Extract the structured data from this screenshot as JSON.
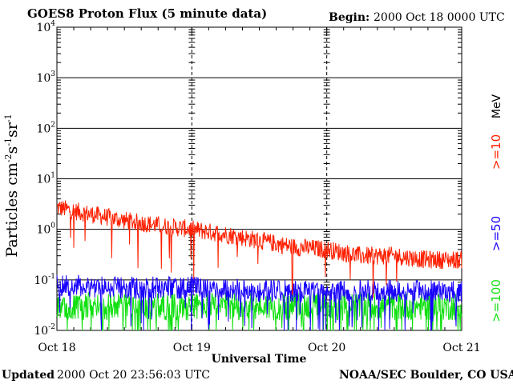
{
  "header": {
    "title": "GOES8 Proton Flux (5 minute data)",
    "begin_label": "Begin:",
    "begin_value": "2000 Oct 18 0000 UTC"
  },
  "footer": {
    "updated_label": "Updated",
    "updated_value": "2000 Oct 20 23:56:03 UTC",
    "credit": "NOAA/SEC Boulder, CO USA"
  },
  "chart_data": {
    "type": "line",
    "title": "GOES8 Proton Flux (5 minute data)",
    "xlabel": "Universal Time",
    "ylabel": "Particles cm-2s-1sr-1",
    "yscale": "log",
    "ylim": [
      0.01,
      10000
    ],
    "xlim": [
      "2000-10-18 00:00",
      "2000-10-21 00:00"
    ],
    "x_ticks": [
      "Oct 18",
      "Oct 19",
      "Oct 20",
      "Oct 21"
    ],
    "y_ticks": [
      {
        "base": "10",
        "exp": "4"
      },
      {
        "base": "10",
        "exp": "3"
      },
      {
        "base": "10",
        "exp": "2"
      },
      {
        "base": "10",
        "exp": "1"
      },
      {
        "base": "10",
        "exp": "0"
      },
      {
        "base": "10",
        "exp": "-1"
      },
      {
        "base": "10",
        "exp": "-2"
      }
    ],
    "legend_unit": "MeV",
    "grid": true,
    "series": [
      {
        "name": ">=10",
        "color": "#ff2000",
        "x": [
          "2000-10-18 00:00",
          "2000-10-18 06:00",
          "2000-10-18 12:00",
          "2000-10-18 18:00",
          "2000-10-19 00:00",
          "2000-10-19 06:00",
          "2000-10-19 12:00",
          "2000-10-19 18:00",
          "2000-10-20 00:00",
          "2000-10-20 06:00",
          "2000-10-20 12:00",
          "2000-10-20 18:00",
          "2000-10-21 00:00"
        ],
        "values": [
          2.7,
          2.0,
          1.5,
          1.2,
          1.0,
          0.8,
          0.6,
          0.45,
          0.4,
          0.3,
          0.3,
          0.25,
          0.25
        ]
      },
      {
        "name": ">=50",
        "color": "#1800ff",
        "x": [
          "2000-10-18 00:00",
          "2000-10-18 12:00",
          "2000-10-19 00:00",
          "2000-10-19 12:00",
          "2000-10-20 00:00",
          "2000-10-20 12:00",
          "2000-10-21 00:00"
        ],
        "values": [
          0.08,
          0.07,
          0.07,
          0.06,
          0.06,
          0.06,
          0.06
        ]
      },
      {
        "name": ">=100",
        "color": "#10e010",
        "x": [
          "2000-10-18 00:00",
          "2000-10-18 12:00",
          "2000-10-19 00:00",
          "2000-10-19 12:00",
          "2000-10-20 00:00",
          "2000-10-20 12:00",
          "2000-10-21 00:00"
        ],
        "values": [
          0.03,
          0.03,
          0.03,
          0.03,
          0.03,
          0.03,
          0.03
        ]
      }
    ]
  }
}
